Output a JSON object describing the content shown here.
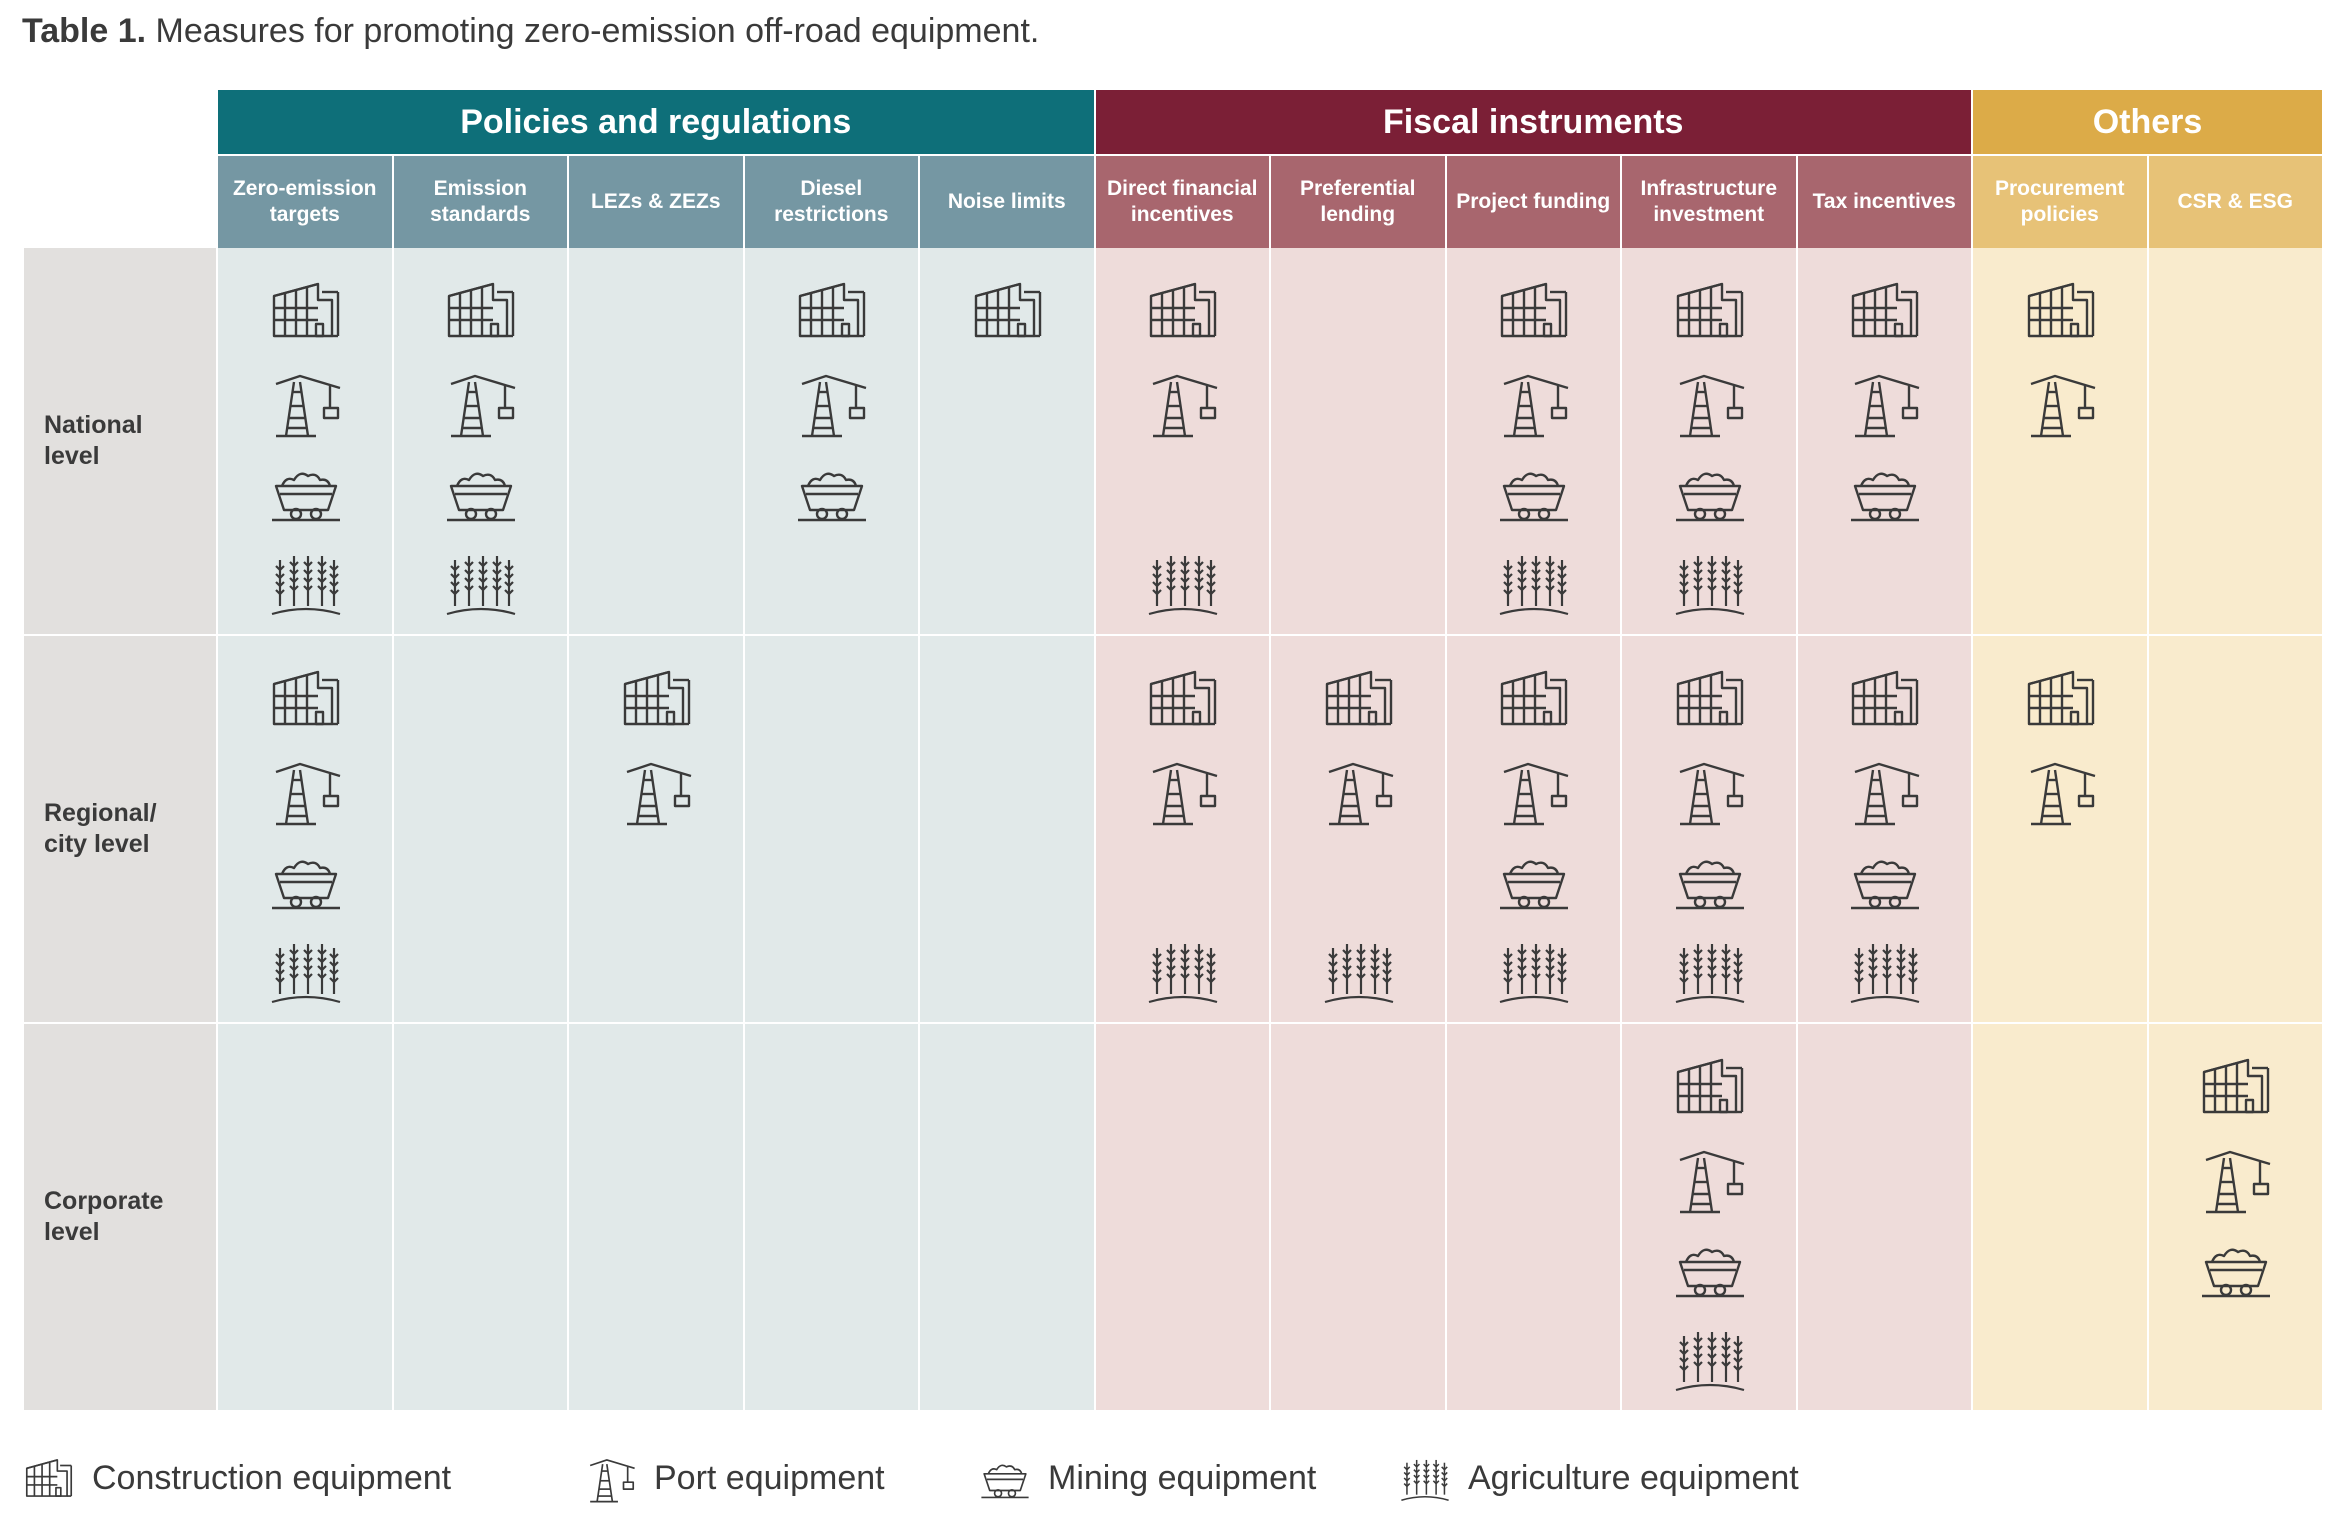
{
  "caption": {
    "label": "Table 1.",
    "text": "Measures for promoting zero-emission off-road equipment."
  },
  "groups": [
    {
      "label": "Policies and regulations",
      "color": "#0e6f79",
      "sub_color": "#7597a3",
      "body_color": "#e1e9e9",
      "span": 5
    },
    {
      "label": "Fiscal instruments",
      "color": "#7b1f36",
      "sub_color": "#a8666e",
      "body_color": "#eedcda",
      "span": 5
    },
    {
      "label": "Others",
      "color": "#dcab48",
      "sub_color": "#e7c277",
      "body_color": "#f9ebcd",
      "span": 2
    }
  ],
  "columns": [
    "Zero-emission targets",
    "Emission standards",
    "LEZs & ZEZs",
    "Diesel restrictions",
    "Noise limits",
    "Direct financial incentives",
    "Preferential lending",
    "Project funding",
    "Infrastructure investment",
    "Tax incentives",
    "Procurement policies",
    "CSR & ESG"
  ],
  "rows": [
    {
      "label": "National\nlevel",
      "cells": [
        [
          "construction",
          "port",
          "mining",
          "agriculture"
        ],
        [
          "construction",
          "port",
          "mining",
          "agriculture"
        ],
        [],
        [
          "construction",
          "port",
          "mining"
        ],
        [
          "construction"
        ],
        [
          "construction",
          "port",
          "agriculture"
        ],
        [],
        [
          "construction",
          "port",
          "mining",
          "agriculture"
        ],
        [
          "construction",
          "port",
          "mining",
          "agriculture"
        ],
        [
          "construction",
          "port",
          "mining"
        ],
        [
          "construction",
          "port"
        ],
        []
      ]
    },
    {
      "label": "Regional/\ncity level",
      "cells": [
        [
          "construction",
          "port",
          "mining",
          "agriculture"
        ],
        [],
        [
          "construction",
          "port"
        ],
        [],
        [],
        [
          "construction",
          "port",
          "agriculture"
        ],
        [
          "construction",
          "port",
          "agriculture"
        ],
        [
          "construction",
          "port",
          "mining",
          "agriculture"
        ],
        [
          "construction",
          "port",
          "mining",
          "agriculture"
        ],
        [
          "construction",
          "port",
          "mining",
          "agriculture"
        ],
        [
          "construction",
          "port"
        ],
        []
      ]
    },
    {
      "label": "Corporate\nlevel",
      "cells": [
        [],
        [],
        [],
        [],
        [],
        [],
        [],
        [],
        [
          "construction",
          "port",
          "mining",
          "agriculture"
        ],
        [],
        [],
        [
          "construction",
          "port",
          "mining"
        ]
      ]
    }
  ],
  "legend": [
    {
      "type": "construction",
      "icon": "construction-icon",
      "label": "Construction equipment"
    },
    {
      "type": "port",
      "icon": "port-crane-icon",
      "label": "Port equipment"
    },
    {
      "type": "mining",
      "icon": "mining-cart-icon",
      "label": "Mining equipment"
    },
    {
      "type": "agriculture",
      "icon": "wheat-icon",
      "label": "Agriculture equipment"
    }
  ],
  "row_label_color": "#e2e0de",
  "grid_line_color": "#ffffff",
  "icon_color": "#3a3a3a"
}
